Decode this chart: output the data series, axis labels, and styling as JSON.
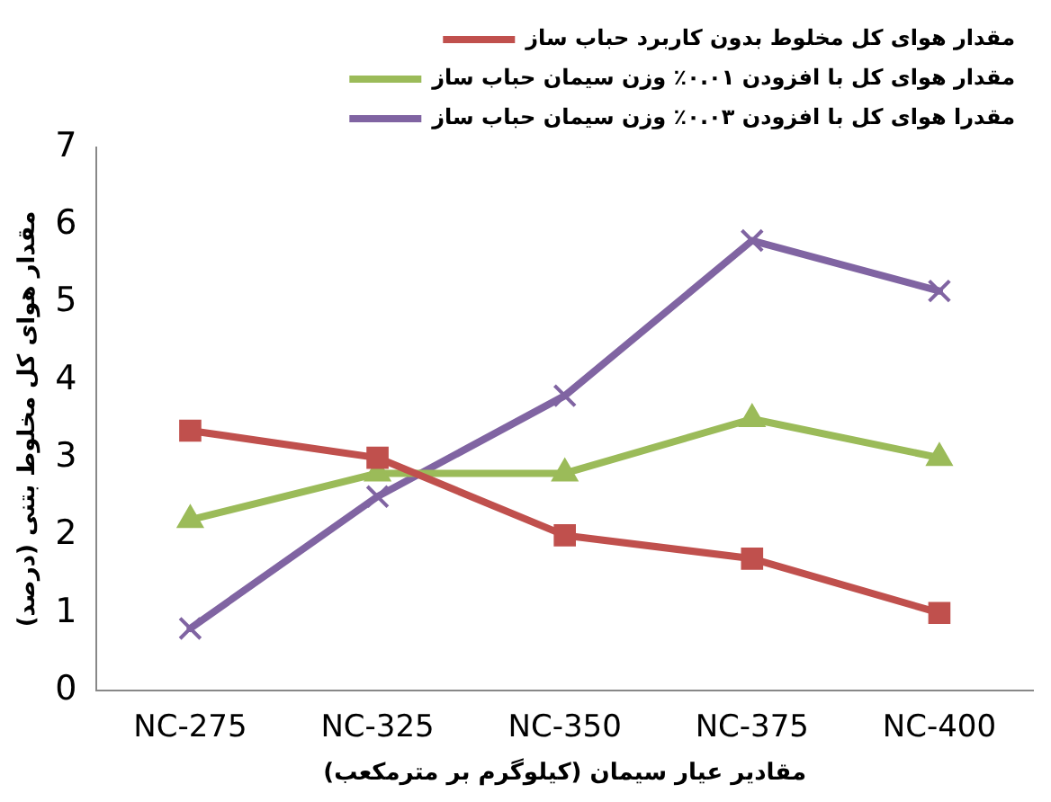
{
  "chart_data": {
    "type": "line",
    "xlabel": "مقادیر عیار سیمان (کیلوگرم بر مترمکعب)",
    "ylabel": "مقدار هوای کل مخلوط بتنی (درصد)",
    "categories": [
      "NC-275",
      "NC-325",
      "NC-350",
      "NC-375",
      "NC-400"
    ],
    "series": [
      {
        "name": "مقدار هوای کل مخلوط بدون کاربرد حباب ساز",
        "color": "#c0504d",
        "marker": "square",
        "values": [
          3.35,
          3.0,
          2.0,
          1.7,
          1.0
        ]
      },
      {
        "name": "مقدار هوای کل با افزودن ۰.۰۱٪ وزن سیمان حباب ساز",
        "color": "#9bbb59",
        "marker": "triangle",
        "values": [
          2.2,
          2.8,
          2.8,
          3.5,
          3.0
        ]
      },
      {
        "name": "مقدرا هوای کل با افزودن ۰.۰۳٪ وزن سیمان حباب ساز",
        "color": "#8064a2",
        "marker": "cross",
        "values": [
          0.8,
          2.5,
          3.8,
          5.8,
          5.15
        ]
      }
    ],
    "ylim": [
      0,
      7
    ],
    "yticks": [
      0,
      1,
      2,
      3,
      4,
      5,
      6,
      7
    ],
    "grid": false,
    "legend": "top right",
    "line_style": "solid"
  }
}
